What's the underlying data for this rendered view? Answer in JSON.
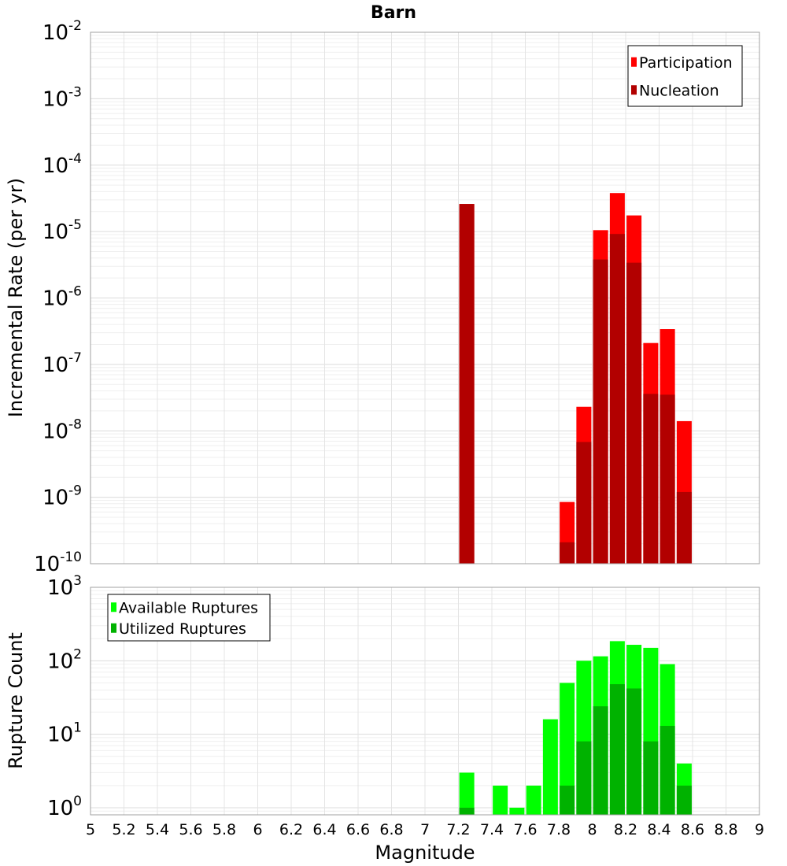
{
  "chart_data": {
    "type": "bar",
    "title": "Barn",
    "xlabel": "Magnitude",
    "xlim": [
      5,
      9
    ],
    "x_tick_labels": [
      "5",
      "5.2",
      "5.4",
      "5.6",
      "5.8",
      "6",
      "6.2",
      "6.4",
      "6.6",
      "6.8",
      "7",
      "7.2",
      "7.4",
      "7.6",
      "7.8",
      "8",
      "8.2",
      "8.4",
      "8.6",
      "8.8",
      "9"
    ],
    "panels": [
      {
        "name": "rate",
        "ylabel": "Incremental Rate (per yr)",
        "yscale": "log",
        "ylim": [
          1e-10,
          0.01
        ],
        "y_ticks": [
          {
            "base": "10",
            "exp": "-2",
            "value": 0.01
          },
          {
            "base": "10",
            "exp": "-3",
            "value": 0.001
          },
          {
            "base": "10",
            "exp": "-4",
            "value": 0.0001
          },
          {
            "base": "10",
            "exp": "-5",
            "value": 1e-05
          },
          {
            "base": "10",
            "exp": "-6",
            "value": 1e-06
          },
          {
            "base": "10",
            "exp": "-7",
            "value": 1e-07
          },
          {
            "base": "10",
            "exp": "-8",
            "value": 1e-08
          },
          {
            "base": "10",
            "exp": "-9",
            "value": 1e-09
          },
          {
            "base": "10",
            "exp": "-10",
            "value": 1e-10
          }
        ],
        "legend_position": "top-right",
        "x": [
          7.25,
          7.85,
          7.95,
          8.05,
          8.15,
          8.25,
          8.35,
          8.45,
          8.55
        ],
        "series": [
          {
            "name": "Participation",
            "color": "#ff0000",
            "values": [
              2.6e-05,
              8.5e-10,
              2.3e-08,
              1.05e-05,
              3.8e-05,
              1.75e-05,
              2.1e-07,
              3.4e-07,
              1.4e-08
            ]
          },
          {
            "name": "Nucleation",
            "color": "#b20000",
            "values": [
              2.6e-05,
              2.1e-10,
              6.8e-09,
              3.8e-06,
              9.2e-06,
              3.4e-06,
              3.6e-08,
              3.5e-08,
              1.2e-09
            ]
          }
        ]
      },
      {
        "name": "count",
        "ylabel": "Rupture Count",
        "yscale": "log",
        "ylim": [
          0.8,
          1000
        ],
        "y_ticks": [
          {
            "base": "10",
            "exp": "3",
            "value": 1000
          },
          {
            "base": "10",
            "exp": "2",
            "value": 100
          },
          {
            "base": "10",
            "exp": "1",
            "value": 10
          },
          {
            "base": "10",
            "exp": "0",
            "value": 1
          }
        ],
        "legend_position": "top-left",
        "x": [
          7.25,
          7.45,
          7.55,
          7.65,
          7.75,
          7.85,
          7.95,
          8.05,
          8.15,
          8.25,
          8.35,
          8.45,
          8.55
        ],
        "series": [
          {
            "name": "Available Ruptures",
            "color": "#00ff00",
            "values": [
              3,
              2,
              1,
              2,
              16,
              50,
              100,
              115,
              185,
              165,
              150,
              90,
              4
            ]
          },
          {
            "name": "Utilized Ruptures",
            "color": "#00b200",
            "values": [
              1,
              0,
              0,
              0,
              0,
              2,
              8,
              24,
              48,
              42,
              8,
              13,
              2
            ]
          }
        ]
      }
    ]
  }
}
